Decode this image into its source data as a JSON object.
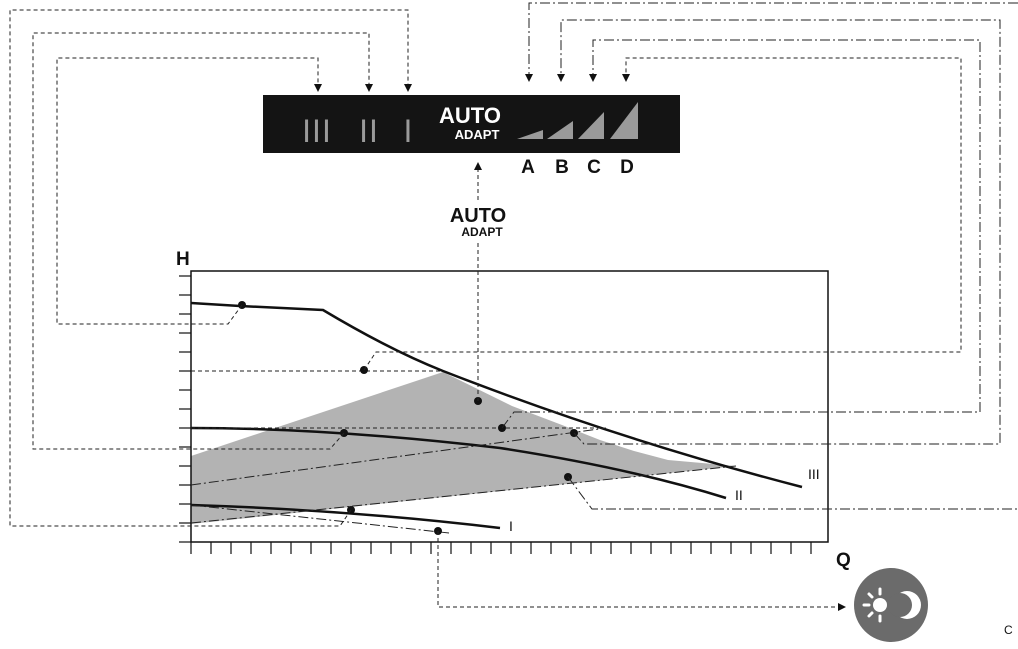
{
  "panel": {
    "modes": [
      "III",
      "II",
      "I"
    ],
    "auto_title": "AUTO",
    "auto_sub": "ADAPT",
    "pressure_modes": [
      "A",
      "B",
      "C",
      "D"
    ]
  },
  "auto_callout": {
    "title": "AUTO",
    "sub": "ADAPT"
  },
  "axes": {
    "y_label": "H",
    "x_label": "Q"
  },
  "curve_labels": {
    "curve_iii": "III",
    "curve_ii": "II",
    "curve_i": "I"
  },
  "corner_label": "C",
  "colors": {
    "panel": "#141414",
    "bar": "#9a9a9a",
    "shaded_area": "#b3b3b3",
    "night_icon": "#6b6b6b"
  },
  "icons": {
    "night_mode": "night-setback-icon"
  }
}
